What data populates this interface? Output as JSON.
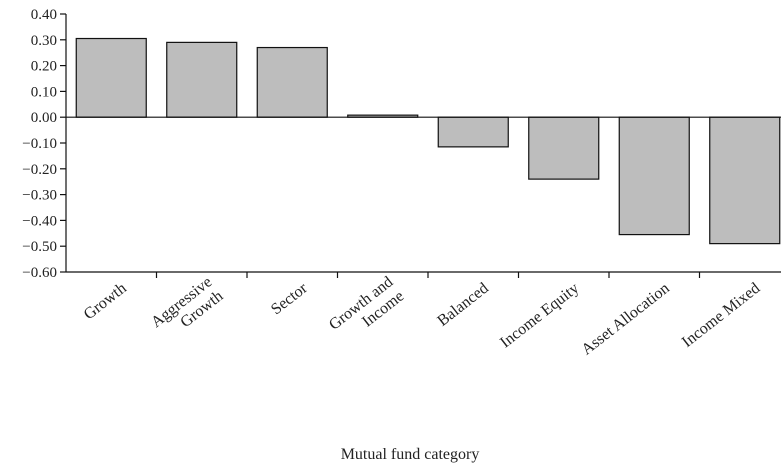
{
  "chart_data": {
    "type": "bar",
    "title": "",
    "xlabel": "Mutual fund category",
    "ylabel": "",
    "categories": [
      "Growth",
      "Aggressive Growth",
      "Sector",
      "Growth and Income",
      "Balanced",
      "Income Equity",
      "Asset Allocation",
      "Income Mixed"
    ],
    "values": [
      0.305,
      0.29,
      0.27,
      0.008,
      -0.115,
      -0.24,
      -0.455,
      -0.49
    ],
    "ylim": [
      -0.6,
      0.4
    ],
    "yticks": [
      0.4,
      0.3,
      0.2,
      0.1,
      0.0,
      -0.1,
      -0.2,
      -0.3,
      -0.4,
      -0.5,
      -0.6
    ],
    "ytick_labels": [
      "0.40",
      "0.30",
      "0.20",
      "0.10",
      "0.00",
      "−0.10",
      "−0.20",
      "−0.30",
      "−0.40",
      "−0.50",
      "−0.60"
    ],
    "grid": false,
    "bar_color": "#bdbdbd"
  }
}
